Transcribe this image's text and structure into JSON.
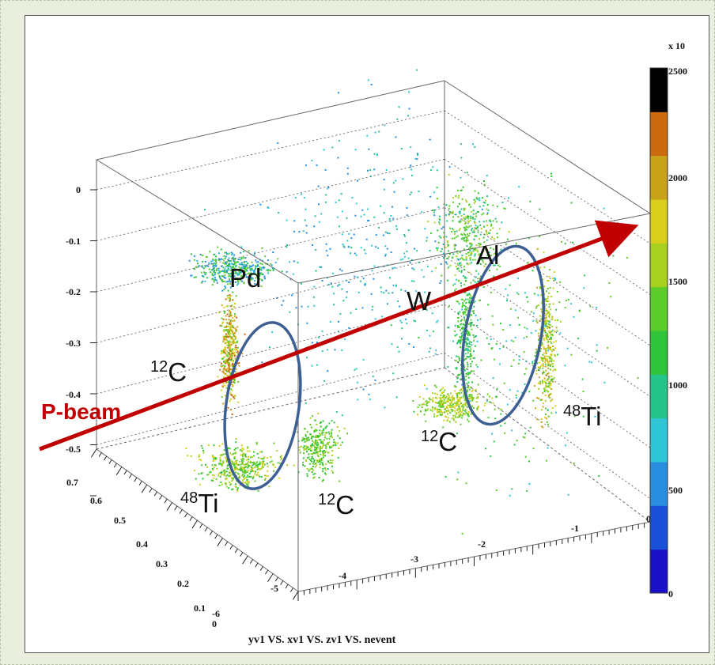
{
  "chart_data": {
    "type": "scatter",
    "title": "yv1 VS. xv1 VS. zv1 VS. nevent",
    "axes": {
      "vertical_ticks": [
        "0",
        "-0.1",
        "-0.2",
        "-0.3",
        "-0.4",
        "-0.5"
      ],
      "left_depth_ticks": [
        "0.7",
        "0.6",
        "0.5",
        "0.4",
        "0.3",
        "0.2",
        "0.1",
        "0"
      ],
      "bottom_ticks": [
        "-6",
        "-5",
        "-4",
        "-3",
        "-2",
        "-1",
        "0"
      ]
    },
    "colorbar": {
      "exponent_label": "x 10",
      "tick_labels": [
        "2500",
        "2000",
        "1500",
        "1000",
        "500",
        "0"
      ],
      "range": [
        0,
        2500
      ],
      "colors": [
        "#1a10c8",
        "#1a4fd8",
        "#2a8ee0",
        "#2fc6d8",
        "#25c48a",
        "#30c43a",
        "#5ccc2a",
        "#a8d020",
        "#d8cf1a",
        "#c8a218",
        "#cc6a10",
        "#000000"
      ]
    },
    "annotations": {
      "pd": "Pd",
      "w": "W",
      "al": "Al",
      "c12_left": {
        "sup": "12",
        "base": "C"
      },
      "c12_bottom": {
        "sup": "12",
        "base": "C"
      },
      "c12_right": {
        "sup": "12",
        "base": "C"
      },
      "ti48_left": {
        "sup": "48",
        "base": "Ti"
      },
      "ti48_right": {
        "sup": "48",
        "base": "Ti"
      },
      "beam": "P-beam"
    },
    "colors": {
      "beam_arrow": "#c00000",
      "ellipse": "#3d5f94"
    }
  }
}
